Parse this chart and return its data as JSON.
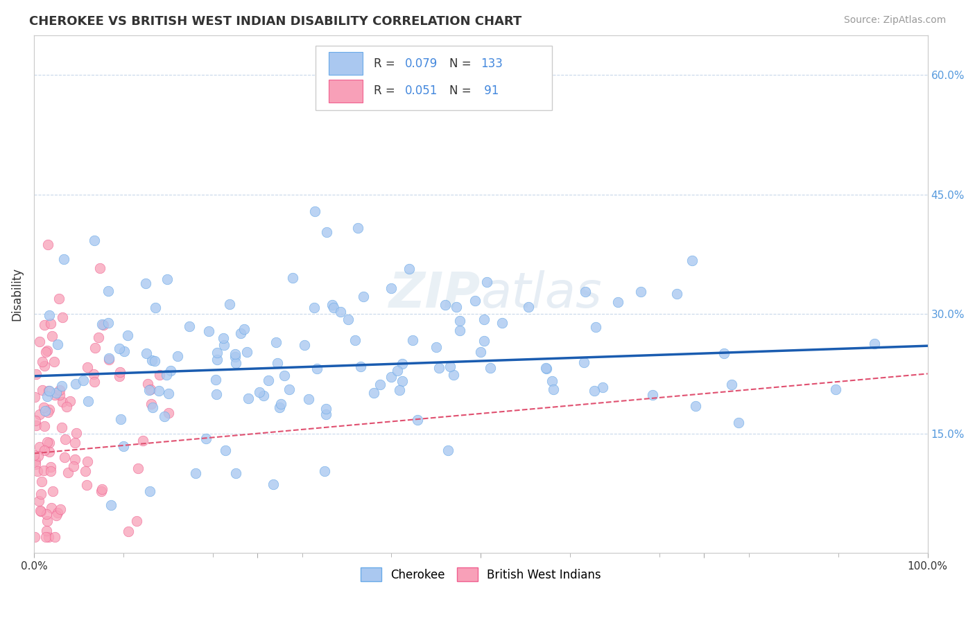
{
  "title": "CHEROKEE VS BRITISH WEST INDIAN DISABILITY CORRELATION CHART",
  "source": "Source: ZipAtlas.com",
  "ylabel": "Disability",
  "xlim": [
    0,
    1.0
  ],
  "ylim": [
    0,
    0.65
  ],
  "xticks": [
    0.0,
    0.25,
    0.5,
    0.75,
    1.0
  ],
  "xticklabels": [
    "0.0%",
    "",
    "",
    "",
    "100.0%"
  ],
  "yticks": [
    0.0,
    0.15,
    0.3,
    0.45,
    0.6
  ],
  "yticklabels_left": [
    "",
    "",
    "",
    "",
    ""
  ],
  "yticklabels_right": [
    "",
    "15.0%",
    "30.0%",
    "45.0%",
    "60.0%"
  ],
  "cherokee_color": "#aac8f0",
  "cherokee_edge": "#6aaae8",
  "bwi_color": "#f8a0b8",
  "bwi_edge": "#f06090",
  "trend_cherokee_color": "#1a5cb0",
  "trend_bwi_color": "#e05070",
  "cherokee_R": 0.079,
  "cherokee_N": 133,
  "bwi_R": 0.051,
  "bwi_N": 91,
  "background_color": "#ffffff",
  "grid_color": "#c8d8ea",
  "watermark": "ZIPatlas",
  "legend_cherokee": "Cherokee",
  "legend_bwi": "British West Indians",
  "cherokee_seed": 42,
  "bwi_seed": 7
}
